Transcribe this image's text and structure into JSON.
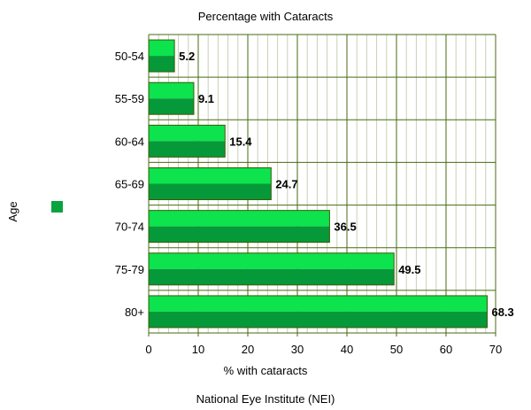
{
  "chart_data": {
    "type": "bar",
    "orientation": "horizontal",
    "title": "Percentage with Cataracts",
    "xlabel": "% with cataracts",
    "ylabel": "Age",
    "categories": [
      "50-54",
      "55-59",
      "60-64",
      "65-69",
      "70-74",
      "75-79",
      "80+"
    ],
    "values": [
      5.2,
      9.1,
      15.4,
      24.7,
      36.5,
      49.5,
      68.3
    ],
    "xlim": [
      0,
      70
    ],
    "xticks": [
      0,
      10,
      20,
      30,
      40,
      50,
      60,
      70
    ],
    "grid": true,
    "legend_placement": "left",
    "source_note": "National Eye Institute (NEI)",
    "colors": {
      "bar_top": "#0ce34d",
      "bar_bottom": "#05993a",
      "bar_outline": "#3a5a00",
      "grid_major": "#4a6a10",
      "grid_minor": "#c8d0b8",
      "legend_swatch": "#0aa33e"
    }
  }
}
